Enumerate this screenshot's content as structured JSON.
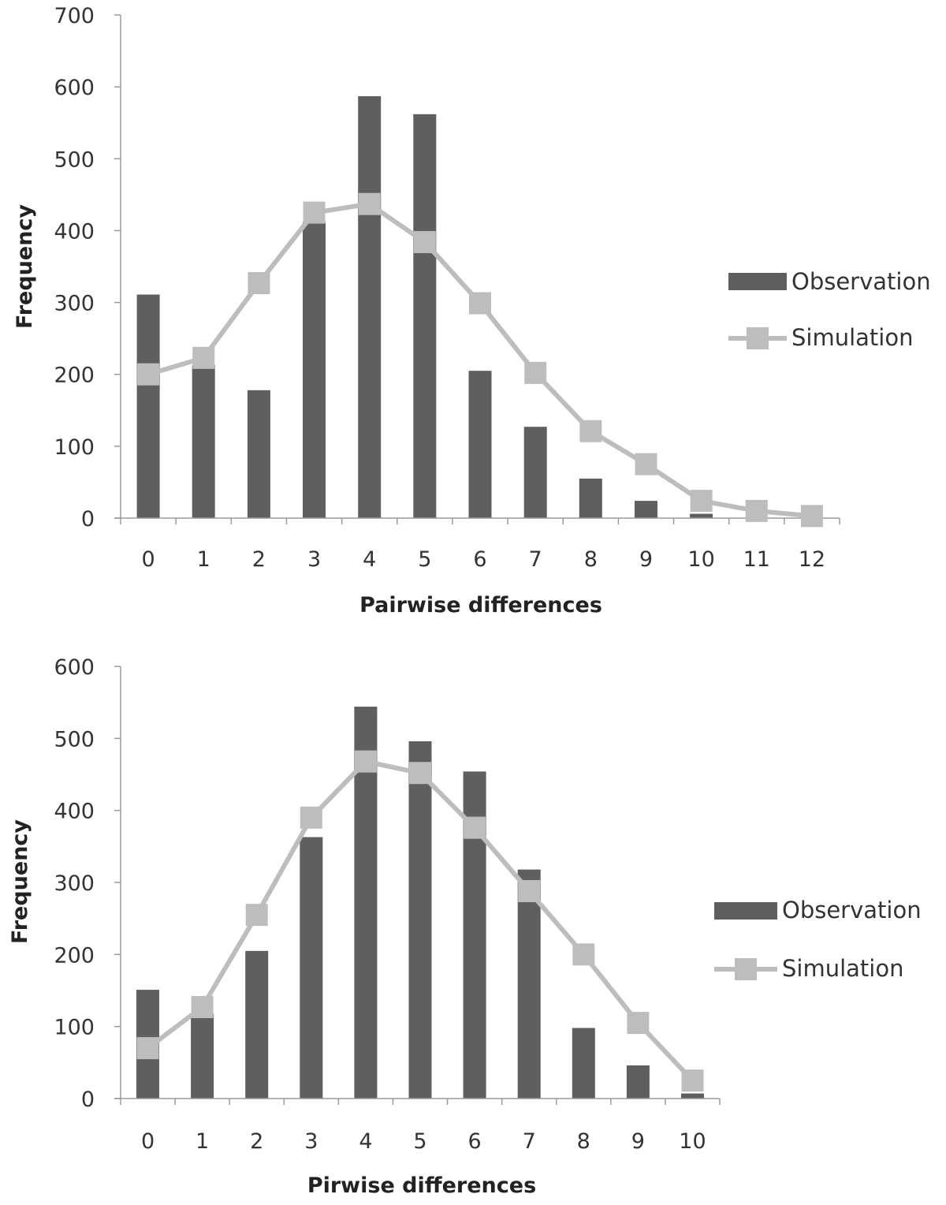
{
  "colors": {
    "observation": "#5f5f5f",
    "simulation": "#bdbdbd",
    "axis": "#9a9a9a",
    "text": "#333333"
  },
  "chart_data": [
    {
      "type": "bar",
      "title": "",
      "xlabel": "Pairwise differences",
      "ylabel": "Frequency",
      "categories": [
        "0",
        "1",
        "2",
        "3",
        "4",
        "5",
        "6",
        "7",
        "8",
        "9",
        "10",
        "11",
        "12"
      ],
      "ylim": [
        0,
        700
      ],
      "yticks": [
        0,
        100,
        200,
        300,
        400,
        500,
        600,
        700
      ],
      "grid": false,
      "legend_position": "right",
      "series": [
        {
          "name": "Observation",
          "type": "bar",
          "values": [
            311,
            213,
            178,
            412,
            587,
            562,
            205,
            127,
            55,
            24,
            6,
            0,
            0
          ]
        },
        {
          "name": "Simulation",
          "type": "line",
          "marker": "square",
          "values": [
            200,
            223,
            327,
            425,
            437,
            384,
            299,
            202,
            121,
            75,
            24,
            10,
            3
          ]
        }
      ]
    },
    {
      "type": "bar",
      "title": "",
      "xlabel": "Pirwise differences",
      "ylabel": "Frequency",
      "categories": [
        "0",
        "1",
        "2",
        "3",
        "4",
        "5",
        "6",
        "7",
        "8",
        "9",
        "10"
      ],
      "ylim": [
        0,
        600
      ],
      "yticks": [
        0,
        100,
        200,
        300,
        400,
        500,
        600
      ],
      "grid": false,
      "legend_position": "right",
      "series": [
        {
          "name": "Observation",
          "type": "bar",
          "values": [
            151,
            118,
            205,
            363,
            544,
            496,
            454,
            318,
            98,
            46,
            7
          ]
        },
        {
          "name": "Simulation",
          "type": "line",
          "marker": "square",
          "values": [
            70,
            127,
            255,
            390,
            468,
            452,
            376,
            288,
            200,
            105,
            25
          ]
        }
      ]
    }
  ]
}
